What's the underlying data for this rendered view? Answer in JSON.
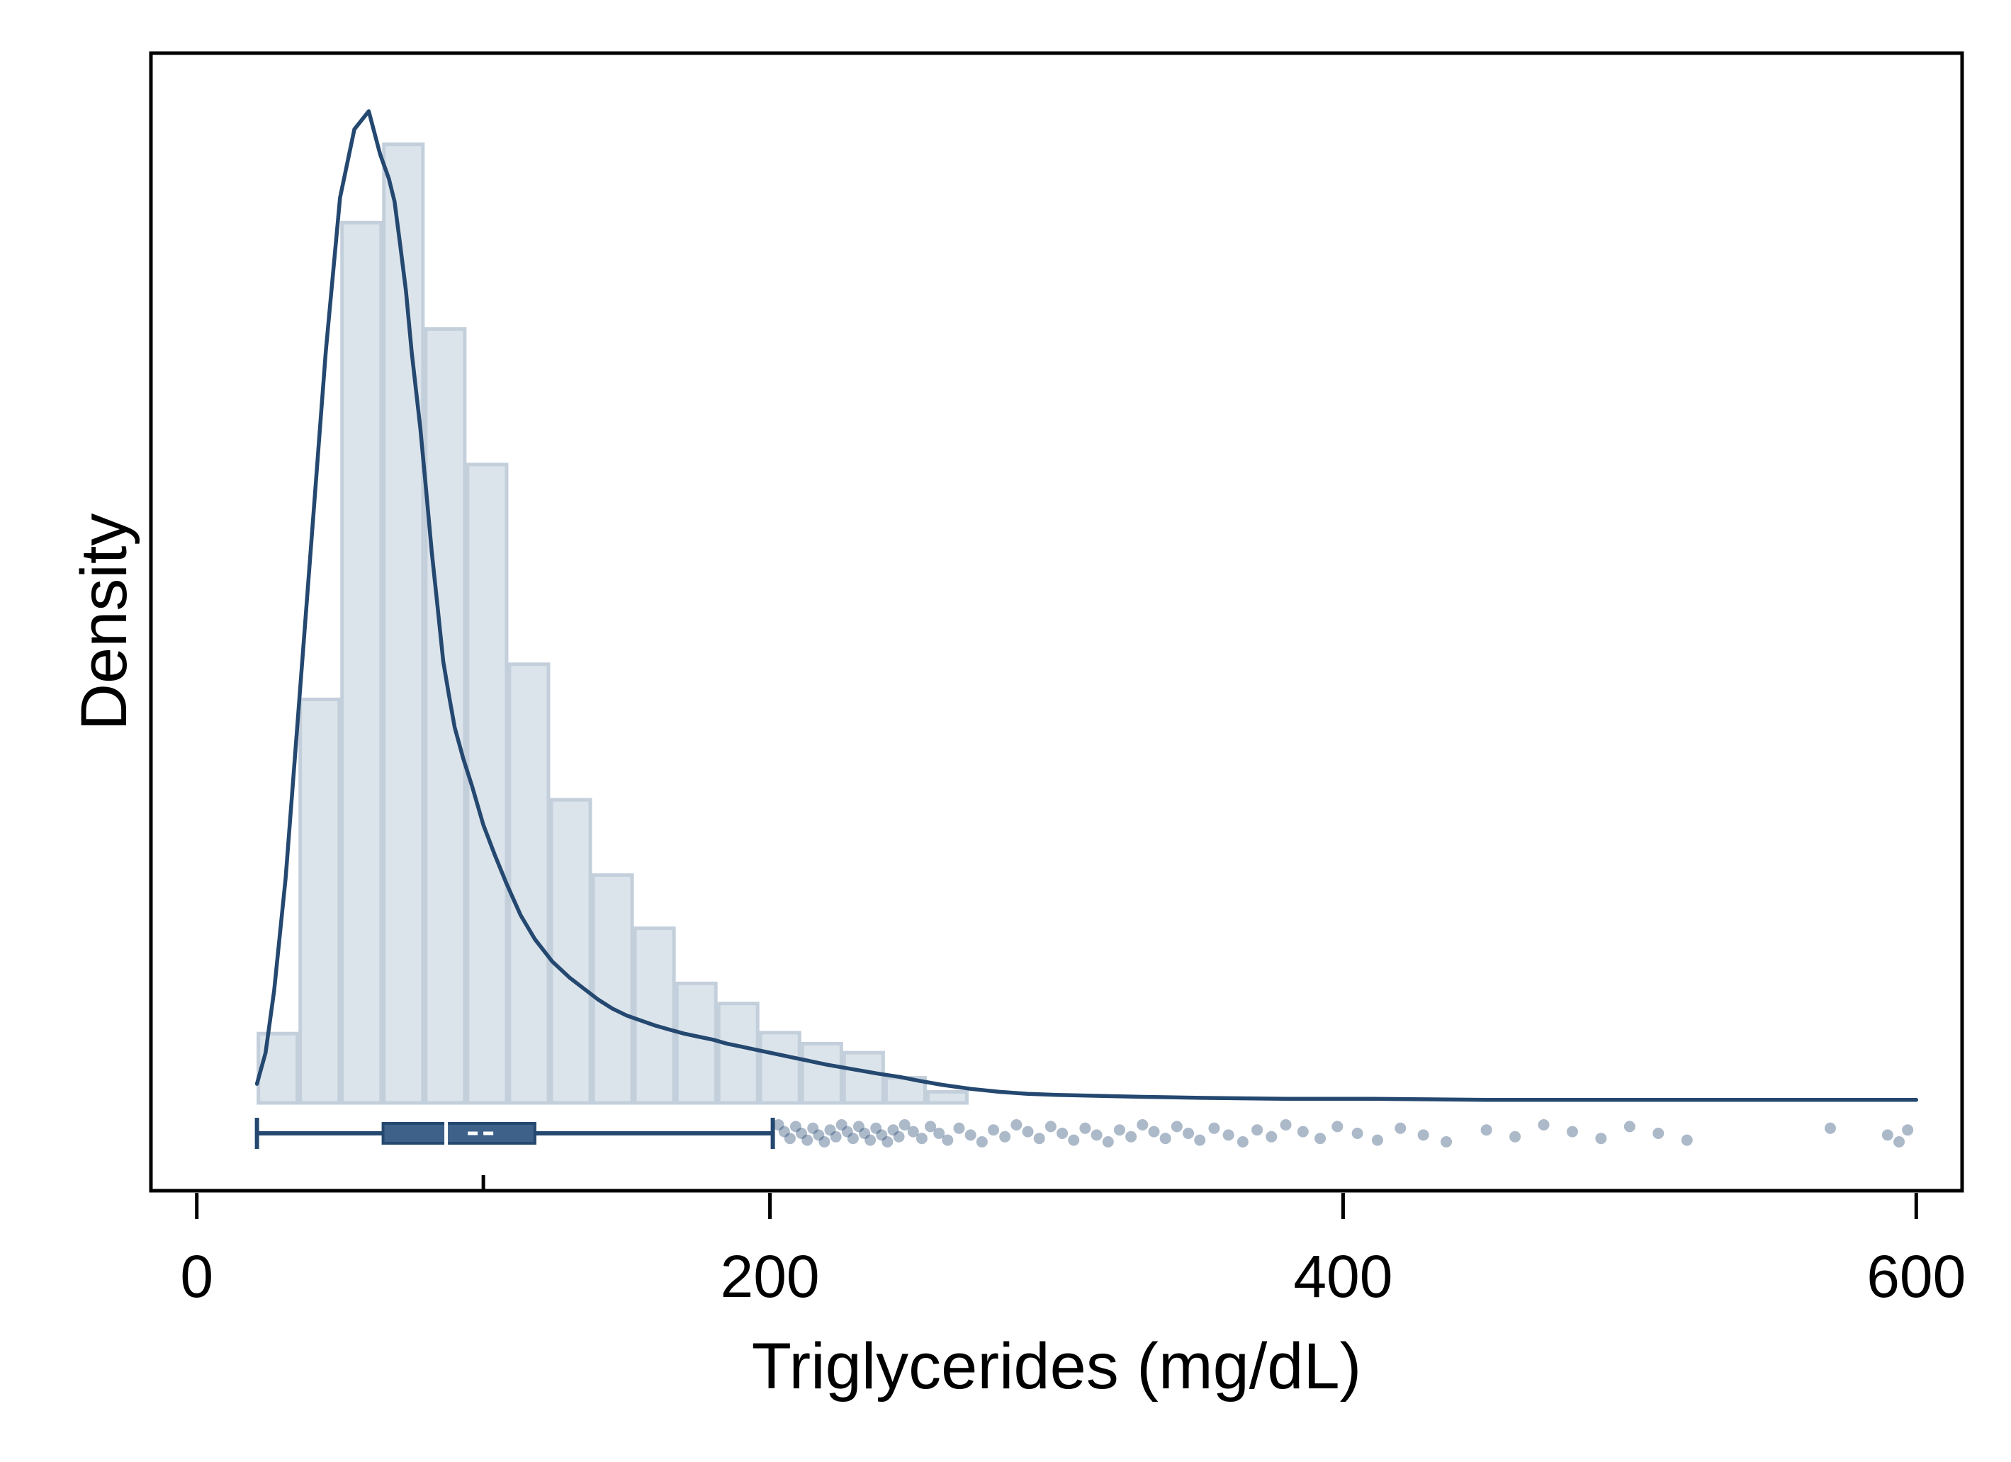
{
  "chart_data": {
    "type": "histogram",
    "xlabel": "Triglycerides (mg/dL)",
    "ylabel": "Density",
    "xlim": [
      -16,
      616
    ],
    "ylim": [
      0,
      1
    ],
    "x_ticks": [
      0,
      200,
      400,
      600
    ],
    "minor_x_ticks": [
      100
    ],
    "y_ticks_shown": false,
    "grid": false,
    "legend": "none",
    "colors": {
      "bar_fill": "#dce4eb",
      "bar_edge": "#c3cfdb",
      "line": "#244870",
      "box": "#3d6189",
      "point": "#244870"
    },
    "histogram": {
      "bin_width": 14.6,
      "bin_starts": [
        21,
        35.6,
        50.2,
        64.8,
        79.4,
        94,
        108.6,
        123.2,
        137.8,
        152.4,
        167,
        181.6,
        196.2,
        210.8,
        225.4,
        240,
        254.6
      ],
      "values": [
        0.069,
        0.402,
        0.877,
        0.955,
        0.771,
        0.636,
        0.437,
        0.302,
        0.227,
        0.174,
        0.119,
        0.099,
        0.07,
        0.059,
        0.05,
        0.025,
        0.011
      ]
    },
    "density_curve": {
      "x": [
        21,
        24,
        27,
        31,
        35,
        40,
        45,
        50,
        55,
        60,
        64,
        67,
        69,
        71,
        73,
        75,
        78,
        80,
        82,
        84,
        86,
        88,
        90,
        93,
        96,
        100,
        104,
        108,
        113,
        118,
        124,
        130,
        135,
        140,
        145,
        150,
        155,
        160,
        165,
        170,
        175,
        180,
        185,
        190,
        195,
        200,
        205,
        210,
        215,
        220,
        226,
        232,
        238,
        245,
        252,
        260,
        270,
        280,
        290,
        300,
        315,
        330,
        350,
        380,
        410,
        450,
        500,
        550,
        600
      ],
      "y": [
        0.019,
        0.05,
        0.112,
        0.224,
        0.373,
        0.56,
        0.748,
        0.902,
        0.97,
        0.988,
        0.945,
        0.921,
        0.898,
        0.854,
        0.809,
        0.748,
        0.672,
        0.611,
        0.549,
        0.495,
        0.44,
        0.406,
        0.374,
        0.343,
        0.316,
        0.277,
        0.247,
        0.219,
        0.187,
        0.163,
        0.141,
        0.125,
        0.114,
        0.103,
        0.094,
        0.087,
        0.082,
        0.077,
        0.073,
        0.069,
        0.066,
        0.063,
        0.059,
        0.056,
        0.053,
        0.05,
        0.047,
        0.044,
        0.041,
        0.038,
        0.035,
        0.032,
        0.029,
        0.026,
        0.022,
        0.018,
        0.014,
        0.011,
        0.009,
        0.008,
        0.007,
        0.006,
        0.005,
        0.004,
        0.004,
        0.003,
        0.003,
        0.003,
        0.003
      ]
    },
    "boxplot": {
      "whisker_low": 21,
      "q1": 65,
      "median": 87,
      "mean": 100,
      "q3": 118,
      "whisker_high": 201
    },
    "outliers": [
      203,
      205,
      207,
      209,
      211,
      213,
      215,
      217,
      219,
      221,
      223,
      225,
      227,
      229,
      231,
      233,
      235,
      237,
      239,
      241,
      243,
      245,
      247,
      250,
      253,
      256,
      259,
      262,
      266,
      270,
      274,
      278,
      282,
      286,
      290,
      294,
      298,
      302,
      306,
      310,
      314,
      318,
      322,
      326,
      330,
      334,
      338,
      342,
      346,
      350,
      355,
      360,
      365,
      370,
      375,
      380,
      386,
      392,
      398,
      405,
      412,
      420,
      428,
      436,
      450,
      460,
      470,
      480,
      490,
      500,
      510,
      520,
      570,
      590,
      594,
      597
    ]
  }
}
